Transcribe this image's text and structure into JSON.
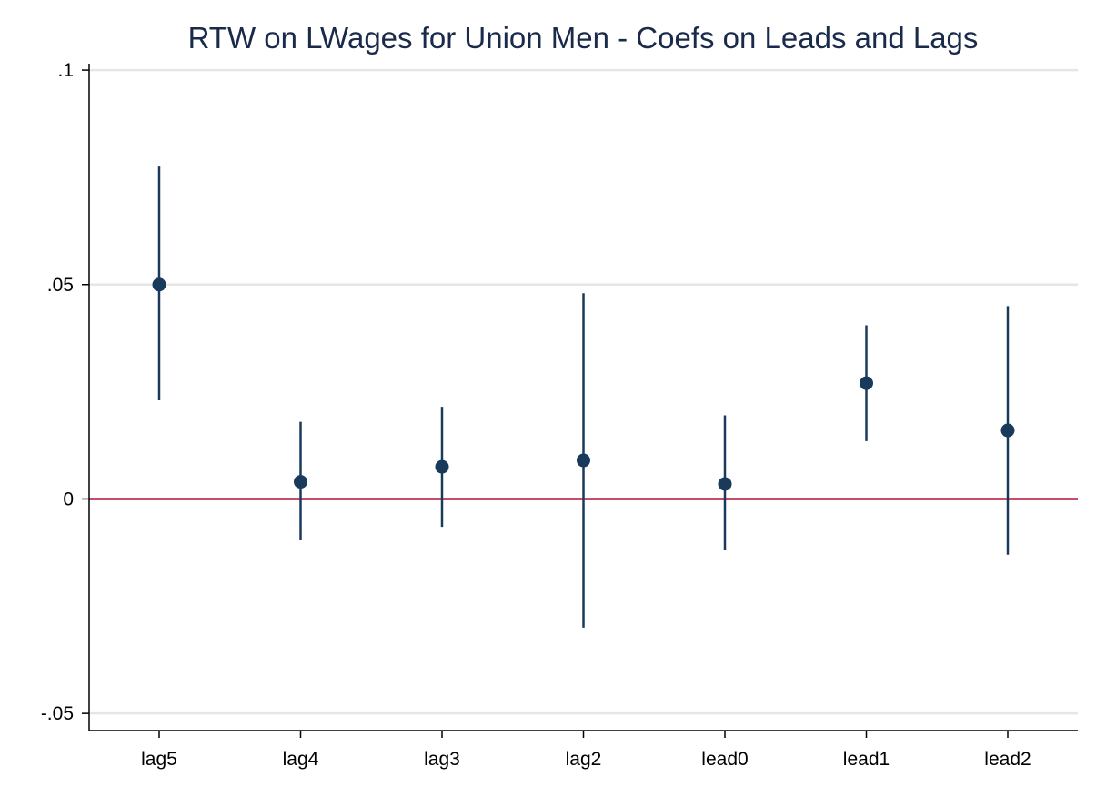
{
  "chart_data": {
    "type": "scatter",
    "title": "RTW on LWages for Union Men - Coefs on Leads and Lags",
    "xlabel": "",
    "ylabel": "",
    "categories": [
      "lag5",
      "lag4",
      "lag3",
      "lag2",
      "lead0",
      "lead1",
      "lead2"
    ],
    "series": [
      {
        "values": [
          0.05,
          0.004,
          0.0075,
          0.009,
          0.0035,
          0.027,
          0.016
        ],
        "ci_low": [
          0.023,
          -0.0095,
          -0.0065,
          -0.03,
          -0.012,
          0.0135,
          -0.013
        ],
        "ci_high": [
          0.0775,
          0.018,
          0.0215,
          0.048,
          0.0195,
          0.0405,
          0.045
        ]
      }
    ],
    "ylim": [
      -0.054,
      0.1015
    ],
    "yticks": [
      -0.05,
      0,
      0.05,
      0.1
    ],
    "ytick_labels": [
      "-.05",
      "0",
      ".05",
      ".1"
    ],
    "reference_line": 0,
    "grid": true,
    "colors": {
      "marker": "#1a3a5c",
      "ci_line": "#1a3a5c",
      "reference": "#b5103c",
      "grid": "#e6e6e6",
      "axis": "#000000",
      "title": "#1a2a4a"
    }
  }
}
